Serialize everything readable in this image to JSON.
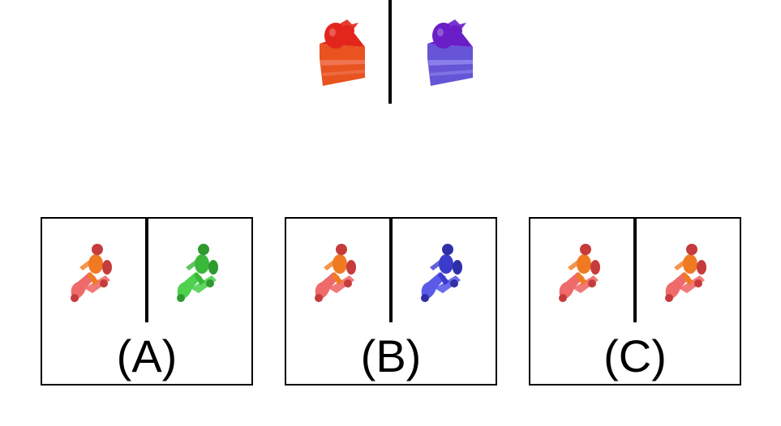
{
  "prompt": {
    "left_icon": "strawberry-cake-icon",
    "right_icon": "strawberry-cake-icon",
    "left_colors": {
      "top": "#e2261c",
      "body": "#e8531f",
      "stripe": "#f07a5a"
    },
    "right_colors": {
      "top": "#6a1ec7",
      "body": "#6655d6",
      "stripe": "#8f86ee"
    }
  },
  "options": [
    {
      "label": "(A)",
      "left_icon": "scooter-rider-icon",
      "right_icon": "scooter-rider-icon",
      "left_colors": {
        "main": "#ef6a6a",
        "rider": "#f07a22",
        "dark": "#c63b3b"
      },
      "right_colors": {
        "main": "#4fd14f",
        "rider": "#39b83a",
        "dark": "#2e9a2e"
      }
    },
    {
      "label": "(B)",
      "left_icon": "scooter-rider-icon",
      "right_icon": "scooter-rider-icon",
      "left_colors": {
        "main": "#ef6a6a",
        "rider": "#f07a22",
        "dark": "#c63b3b"
      },
      "right_colors": {
        "main": "#5a5ce8",
        "rider": "#3b3ccc",
        "dark": "#2f2fa8"
      }
    },
    {
      "label": "(C)",
      "left_icon": "scooter-rider-icon",
      "right_icon": "scooter-rider-icon",
      "left_colors": {
        "main": "#ef6a6a",
        "rider": "#f07a22",
        "dark": "#c63b3b"
      },
      "right_colors": {
        "main": "#ef6a6a",
        "rider": "#f07a22",
        "dark": "#c63b3b"
      }
    }
  ]
}
